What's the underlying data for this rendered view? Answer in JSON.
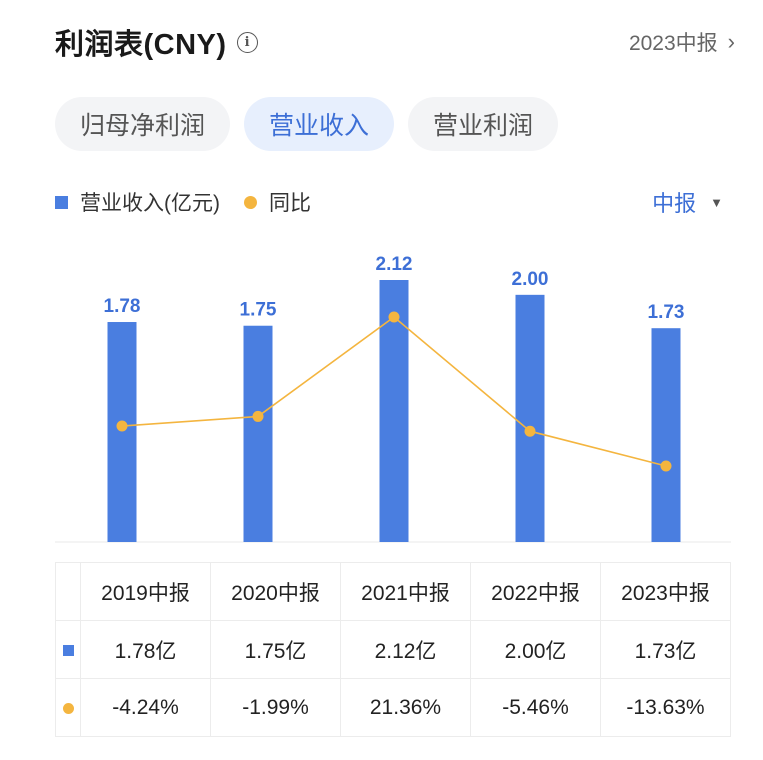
{
  "header": {
    "title": "利润表(CNY)",
    "info_icon": "i",
    "period_link": "2023中报",
    "chevron": "›"
  },
  "tabs": [
    {
      "label": "归母净利润",
      "active": false
    },
    {
      "label": "营业收入",
      "active": true
    },
    {
      "label": "营业利润",
      "active": false
    }
  ],
  "legend": {
    "bar_label": "营业收入(亿元)",
    "line_label": "同比"
  },
  "period_select": {
    "label": "中报",
    "caret": "▼"
  },
  "colors": {
    "bar": "#4a7ee0",
    "line": "#f4b53f",
    "positive": "#d9433c",
    "negative": "#3a9b6e",
    "accent": "#3d6fd6"
  },
  "chart_data": {
    "type": "bar",
    "categories": [
      "2019中报",
      "2020中报",
      "2021中报",
      "2022中报",
      "2023中报"
    ],
    "series": [
      {
        "name": "营业收入(亿元)",
        "type": "bar",
        "values": [
          1.78,
          1.75,
          2.12,
          2.0,
          1.73
        ],
        "labels": [
          "1.78",
          "1.75",
          "2.12",
          "2.00",
          "1.73"
        ]
      },
      {
        "name": "同比",
        "type": "line",
        "values": [
          -4.24,
          -1.99,
          21.36,
          -5.46,
          -13.63
        ]
      }
    ],
    "ylim": [
      0,
      2.12
    ]
  },
  "table": {
    "headers": [
      "2019中报",
      "2020中报",
      "2021中报",
      "2022中报",
      "2023中报"
    ],
    "revenue": [
      "1.78亿",
      "1.75亿",
      "2.12亿",
      "2.00亿",
      "1.73亿"
    ],
    "yoy": [
      "-4.24%",
      "-1.99%",
      "21.36%",
      "-5.46%",
      "-13.63%"
    ]
  }
}
